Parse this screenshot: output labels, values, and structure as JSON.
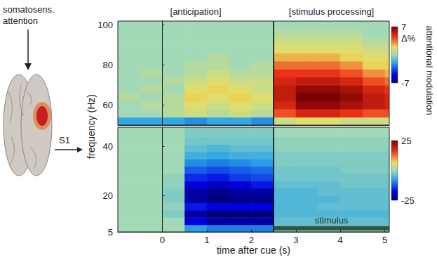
{
  "chart_data": {
    "type": "heatmap",
    "x_label": "time after cue (s)",
    "y_label": "frequency (Hz)",
    "xlim": [
      -1,
      5.1
    ],
    "xticks": [
      0,
      1,
      2,
      3,
      4,
      5
    ],
    "time_bins": [
      -1,
      -0.5,
      0,
      0.5,
      1,
      1.5,
      2,
      2.5,
      3,
      3.5,
      4,
      4.5,
      5,
      5.1
    ],
    "periods": [
      {
        "label": "[anticipation]",
        "x": [
          -1,
          2.5
        ]
      },
      {
        "label": "[stimulus processing]",
        "x": [
          2.5,
          5.1
        ]
      }
    ],
    "colorbar_title": "attentional modulation",
    "diagram": {
      "text": "somatosens. attention",
      "region": "S1"
    },
    "panels": [
      {
        "ylim": [
          50,
          102
        ],
        "yticks": [
          60,
          80,
          100
        ],
        "freq_bins": [
          50,
          54,
          58,
          62,
          66,
          70,
          74,
          78,
          82,
          86,
          90,
          94,
          98,
          102
        ],
        "colorbar": {
          "range": [
            -7,
            7
          ],
          "ticks": [
            -7,
            7
          ],
          "label": "Δ%"
        },
        "cells": [
          [
            -2,
            -2,
            -2,
            -2.5,
            -2,
            -2,
            -2.5,
            1,
            1.5,
            1.5,
            1,
            1,
            1
          ],
          [
            0,
            0,
            0.5,
            1,
            0.5,
            1,
            0.5,
            4,
            5,
            5,
            4.5,
            4,
            4
          ],
          [
            0,
            0.5,
            0.5,
            1.5,
            1,
            1.5,
            1,
            5,
            6.5,
            6.5,
            6,
            5.5,
            5
          ],
          [
            0.5,
            0,
            0.5,
            2,
            1.5,
            2,
            1.5,
            5.5,
            7,
            7,
            6.5,
            5.5,
            5
          ],
          [
            0,
            0.5,
            0,
            1.5,
            2,
            1.5,
            1,
            5.5,
            6.5,
            6.5,
            6,
            5,
            4.5
          ],
          [
            0,
            0,
            0.5,
            1,
            1.5,
            1,
            1,
            5,
            5.5,
            5.5,
            5,
            4,
            3.5
          ],
          [
            0,
            0.5,
            0,
            0.5,
            1,
            0.5,
            0.5,
            4.5,
            4.5,
            4.5,
            4,
            3,
            2.5
          ],
          [
            0,
            0,
            0,
            0.5,
            0.5,
            0,
            0.5,
            3.5,
            3.5,
            3.5,
            3,
            2,
            2
          ],
          [
            0,
            0,
            0,
            0,
            0.5,
            0,
            0,
            2.5,
            2.5,
            2.5,
            2,
            1.5,
            1.5
          ],
          [
            0,
            0,
            0,
            0,
            0,
            0,
            0,
            1.5,
            1.5,
            1.5,
            1.5,
            1,
            1
          ],
          [
            0,
            0,
            0,
            0,
            0,
            0,
            0,
            1,
            1,
            1,
            1,
            0.5,
            0.5
          ],
          [
            0,
            0,
            0,
            0,
            0,
            0,
            0,
            0.5,
            0.5,
            0.5,
            0.5,
            0,
            0
          ],
          [
            0,
            0,
            0,
            0,
            0,
            0,
            0,
            0,
            0,
            0,
            0,
            0,
            0
          ]
        ]
      },
      {
        "ylim": [
          5,
          48
        ],
        "yticks": [
          5,
          20,
          40
        ],
        "freq_bins": [
          5,
          8,
          11,
          14,
          17,
          20,
          23,
          26,
          29,
          32,
          35,
          38,
          41,
          44,
          48
        ],
        "colorbar": {
          "range": [
            -25,
            25
          ],
          "ticks": [
            -25,
            25
          ]
        },
        "annotation": {
          "text": "stimulus",
          "x": [
            2.5,
            5.1
          ],
          "y": 6.5
        },
        "cells": [
          [
            0,
            0,
            0,
            -8,
            -10,
            -10,
            -10,
            -3,
            -3,
            -3,
            -3,
            -3,
            -3
          ],
          [
            0,
            0,
            0,
            -18,
            -22,
            -22,
            -22,
            -4,
            -4,
            -4,
            -4,
            -4,
            -4
          ],
          [
            0,
            0,
            -2,
            -22,
            -25,
            -25,
            -25,
            -5,
            -5,
            -5,
            -5,
            -5,
            -5
          ],
          [
            0,
            0,
            -1,
            -16,
            -18,
            -18,
            -18,
            -5,
            -5,
            -4,
            -4,
            -4,
            -4
          ],
          [
            0,
            0,
            -2,
            -22,
            -25,
            -24,
            -24,
            -5,
            -5,
            -5,
            -4,
            -4,
            -4
          ],
          [
            0,
            0,
            -2,
            -22,
            -24,
            -22,
            -22,
            -5,
            -5,
            -4,
            -4,
            -4,
            -4
          ],
          [
            0,
            0,
            -1,
            -18,
            -20,
            -18,
            -16,
            -4,
            -4,
            -4,
            -3,
            -3,
            -3
          ],
          [
            0,
            0,
            -1,
            -15,
            -16,
            -14,
            -13,
            -3,
            -3,
            -3,
            -3,
            -3,
            -3
          ],
          [
            0,
            0,
            0,
            -12,
            -13,
            -12,
            -11,
            -3,
            -3,
            -3,
            -2,
            -2,
            -2
          ],
          [
            0,
            0,
            0,
            -9,
            -10,
            -9,
            -8,
            -2,
            -2,
            -2,
            -2,
            -2,
            -2
          ],
          [
            0,
            0,
            0,
            -6,
            -7,
            -6,
            -6,
            -2,
            -2,
            -2,
            -2,
            -2,
            -2
          ],
          [
            0,
            0,
            0,
            -4,
            -5,
            -4,
            -4,
            -1,
            -1,
            -1,
            -1,
            -1,
            -1
          ],
          [
            0,
            0,
            0,
            -3,
            -3,
            -3,
            -3,
            -1,
            -1,
            -1,
            -1,
            -1,
            -1
          ],
          [
            0,
            0,
            0,
            -2,
            -2,
            -2,
            -2,
            0,
            0,
            0,
            0,
            0,
            0
          ]
        ]
      }
    ]
  }
}
